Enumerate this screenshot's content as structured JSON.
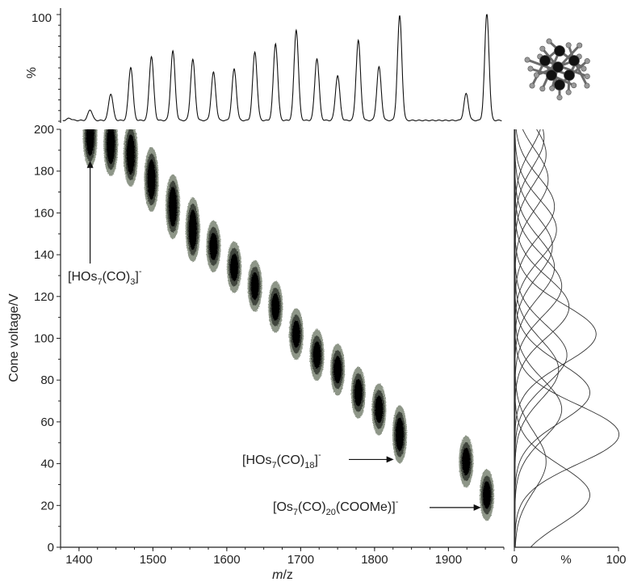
{
  "chart_data": [
    {
      "type": "heatmap",
      "xlabel_prefix": "m",
      "xlabel_suffix": "/z",
      "ylabel": "Cone voltage/V",
      "xlim": [
        1375,
        1975
      ],
      "ylim": [
        0,
        200
      ],
      "x_ticks": [
        1400,
        1500,
        1600,
        1700,
        1800,
        1900
      ],
      "y_ticks": [
        0,
        20,
        40,
        60,
        80,
        100,
        120,
        140,
        160,
        180,
        200
      ],
      "spots": [
        {
          "x": 1415,
          "y": 197
        },
        {
          "x": 1443,
          "y": 193
        },
        {
          "x": 1470,
          "y": 188
        },
        {
          "x": 1498,
          "y": 176
        },
        {
          "x": 1527,
          "y": 163
        },
        {
          "x": 1554,
          "y": 152
        },
        {
          "x": 1582,
          "y": 144
        },
        {
          "x": 1610,
          "y": 134
        },
        {
          "x": 1638,
          "y": 125
        },
        {
          "x": 1666,
          "y": 115
        },
        {
          "x": 1694,
          "y": 102
        },
        {
          "x": 1722,
          "y": 92
        },
        {
          "x": 1750,
          "y": 85
        },
        {
          "x": 1778,
          "y": 74
        },
        {
          "x": 1806,
          "y": 66
        },
        {
          "x": 1834,
          "y": 54
        },
        {
          "x": 1924,
          "y": 41
        },
        {
          "x": 1952,
          "y": 25
        }
      ],
      "colors": {
        "outer": "#8e9688",
        "mid": "#3f443c",
        "core": "#050505"
      }
    },
    {
      "type": "line",
      "ylabel": "%",
      "ylim": [
        0,
        100
      ],
      "y_ticks": [
        100
      ],
      "peaks": [
        {
          "x": 1387,
          "y": 2
        },
        {
          "x": 1415,
          "y": 10
        },
        {
          "x": 1443,
          "y": 25
        },
        {
          "x": 1470,
          "y": 50
        },
        {
          "x": 1498,
          "y": 60
        },
        {
          "x": 1527,
          "y": 65
        },
        {
          "x": 1554,
          "y": 57
        },
        {
          "x": 1582,
          "y": 45
        },
        {
          "x": 1610,
          "y": 48
        },
        {
          "x": 1638,
          "y": 64
        },
        {
          "x": 1666,
          "y": 72
        },
        {
          "x": 1694,
          "y": 85
        },
        {
          "x": 1722,
          "y": 58
        },
        {
          "x": 1750,
          "y": 42
        },
        {
          "x": 1778,
          "y": 75
        },
        {
          "x": 1806,
          "y": 50
        },
        {
          "x": 1834,
          "y": 98
        },
        {
          "x": 1924,
          "y": 25
        },
        {
          "x": 1952,
          "y": 100
        }
      ]
    },
    {
      "type": "line",
      "xlabel": "%",
      "xlim": [
        0,
        100
      ],
      "x_ticks": [
        0,
        100
      ],
      "curves": [
        {
          "center": 25,
          "amp": 72
        },
        {
          "center": 41,
          "amp": 30
        },
        {
          "center": 54,
          "amp": 100
        },
        {
          "center": 66,
          "amp": 45
        },
        {
          "center": 74,
          "amp": 72
        },
        {
          "center": 85,
          "amp": 42
        },
        {
          "center": 92,
          "amp": 50
        },
        {
          "center": 102,
          "amp": 78
        },
        {
          "center": 115,
          "amp": 52
        },
        {
          "center": 125,
          "amp": 45
        },
        {
          "center": 134,
          "amp": 38
        },
        {
          "center": 144,
          "amp": 36
        },
        {
          "center": 152,
          "amp": 40
        },
        {
          "center": 163,
          "amp": 38
        },
        {
          "center": 176,
          "amp": 32
        },
        {
          "center": 188,
          "amp": 30
        },
        {
          "center": 196,
          "amp": 28
        },
        {
          "center": 205,
          "amp": 26
        }
      ]
    }
  ],
  "annotations": {
    "a1": {
      "formula": "[HOs",
      "sub1": "7",
      "mid": "(CO)",
      "sub2": "3",
      "end": "]",
      "sup": "-",
      "tip": {
        "x": 1415,
        "y": 185
      }
    },
    "a2": {
      "formula": "[HOs",
      "sub1": "7",
      "mid": "(CO)",
      "sub2": "18",
      "end": "]",
      "sup": "-",
      "tip": {
        "x": 1826,
        "y": 42
      }
    },
    "a3": {
      "formula": "[Os",
      "sub1": "7",
      "mid": "(CO)",
      "sub2": "20",
      "end": "(COOMe)]",
      "sup": "-",
      "tip": {
        "x": 1944,
        "y": 19
      }
    }
  }
}
